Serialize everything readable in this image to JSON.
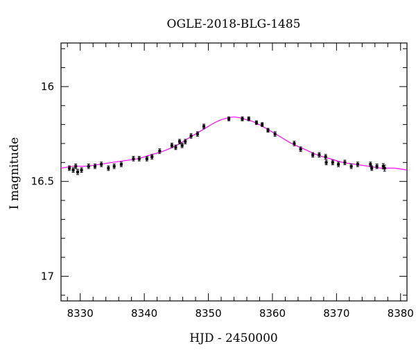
{
  "chart_data": {
    "type": "scatter",
    "title": "OGLE-2018-BLG-1485",
    "xlabel": "HJD - 2450000",
    "ylabel": "I magnitude",
    "xlim": [
      8327,
      8381
    ],
    "ylim": [
      17.13,
      15.77
    ],
    "y_inverted": true,
    "xticks": [
      8330,
      8340,
      8350,
      8360,
      8370,
      8380
    ],
    "yticks": [
      16,
      16.5,
      17
    ],
    "colors": {
      "model": "#ff00ff",
      "points": "#000000"
    },
    "series": [
      {
        "kind": "observations",
        "points": [
          [
            8328.3,
            16.43,
            0.012
          ],
          [
            8328.9,
            16.44,
            0.012
          ],
          [
            8329.3,
            16.42,
            0.012
          ],
          [
            8329.6,
            16.45,
            0.014
          ],
          [
            8330.2,
            16.44,
            0.012
          ],
          [
            8331.3,
            16.42,
            0.012
          ],
          [
            8332.3,
            16.42,
            0.012
          ],
          [
            8333.3,
            16.41,
            0.012
          ],
          [
            8334.4,
            16.43,
            0.012
          ],
          [
            8335.3,
            16.42,
            0.012
          ],
          [
            8336.4,
            16.41,
            0.012
          ],
          [
            8338.3,
            16.38,
            0.012
          ],
          [
            8339.2,
            16.38,
            0.012
          ],
          [
            8340.4,
            16.38,
            0.012
          ],
          [
            8341.2,
            16.37,
            0.012
          ],
          [
            8342.4,
            16.34,
            0.012
          ],
          [
            8344.3,
            16.31,
            0.012
          ],
          [
            8344.9,
            16.32,
            0.012
          ],
          [
            8345.5,
            16.29,
            0.012
          ],
          [
            8345.9,
            16.31,
            0.012
          ],
          [
            8346.4,
            16.29,
            0.012
          ],
          [
            8347.3,
            16.26,
            0.012
          ],
          [
            8348.3,
            16.25,
            0.012
          ],
          [
            8349.3,
            16.21,
            0.012
          ],
          [
            8353.2,
            16.17,
            0.01
          ],
          [
            8355.3,
            16.17,
            0.01
          ],
          [
            8356.3,
            16.17,
            0.01
          ],
          [
            8357.5,
            16.19,
            0.01
          ],
          [
            8358.4,
            16.2,
            0.01
          ],
          [
            8359.3,
            16.23,
            0.01
          ],
          [
            8360.4,
            16.25,
            0.012
          ],
          [
            8363.4,
            16.3,
            0.012
          ],
          [
            8364.4,
            16.33,
            0.012
          ],
          [
            8366.3,
            16.36,
            0.012
          ],
          [
            8367.3,
            16.36,
            0.012
          ],
          [
            8368.3,
            16.37,
            0.012
          ],
          [
            8368.4,
            16.4,
            0.012
          ],
          [
            8369.4,
            16.4,
            0.012
          ],
          [
            8370.3,
            16.41,
            0.012
          ],
          [
            8371.3,
            16.4,
            0.012
          ],
          [
            8372.3,
            16.42,
            0.012
          ],
          [
            8373.3,
            16.41,
            0.012
          ],
          [
            8375.3,
            16.41,
            0.012
          ],
          [
            8375.5,
            16.43,
            0.012
          ],
          [
            8376.3,
            16.42,
            0.012
          ],
          [
            8377.3,
            16.42,
            0.014
          ],
          [
            8377.5,
            16.43,
            0.016
          ]
        ]
      },
      {
        "kind": "model",
        "x": [
          8327,
          8329,
          8331,
          8333,
          8335,
          8337,
          8339,
          8341,
          8343,
          8345,
          8347,
          8349,
          8351,
          8352,
          8353,
          8354,
          8355,
          8356,
          8357,
          8359,
          8361,
          8363,
          8365,
          8367,
          8369,
          8371,
          8373,
          8375,
          8377,
          8379,
          8381
        ],
        "y": [
          16.43,
          16.42,
          16.42,
          16.41,
          16.4,
          16.39,
          16.38,
          16.36,
          16.34,
          16.31,
          16.27,
          16.23,
          16.19,
          16.175,
          16.165,
          16.16,
          16.165,
          16.175,
          16.185,
          16.22,
          16.26,
          16.3,
          16.33,
          16.36,
          16.38,
          16.4,
          16.41,
          16.42,
          16.43,
          16.43,
          16.44
        ]
      }
    ]
  }
}
